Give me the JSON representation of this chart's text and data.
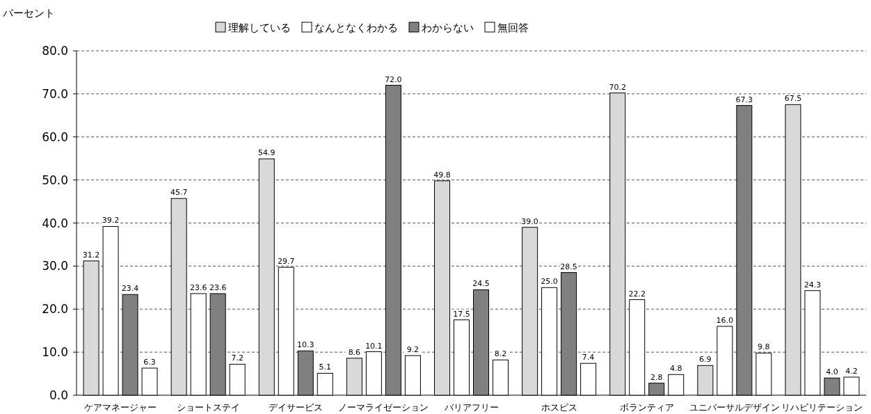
{
  "chart_data": {
    "type": "bar",
    "ylabel": "パーセント",
    "categories": [
      "ケアマネージャー",
      "ショートステイ",
      "デイサービス",
      "ノーマライゼーション",
      "バリアフリー",
      "ホスピス",
      "ボランティア",
      "ユニバーサルデザイン",
      "リハビリテーション"
    ],
    "series": [
      {
        "name": "理解している",
        "color": "#d9d9d9",
        "values": [
          31.2,
          45.7,
          54.9,
          8.6,
          49.8,
          39.0,
          70.2,
          6.9,
          67.5
        ],
        "value_labels": [
          "31.2",
          "45.7",
          "54.9",
          "8.6",
          "49.8",
          "39.0",
          "70.2",
          "6.9",
          "67.5"
        ]
      },
      {
        "name": "なんとなくわかる",
        "color": "#ffffff",
        "values": [
          39.2,
          23.6,
          29.7,
          10.1,
          17.5,
          25.0,
          22.2,
          16.0,
          24.3
        ],
        "value_labels": [
          "39.2",
          "23.6",
          "29.7",
          "10.1",
          "17.5",
          "25.0",
          "22.2",
          "16.0",
          "24.3"
        ]
      },
      {
        "name": "わからない",
        "color": "#808080",
        "values": [
          23.4,
          23.6,
          10.3,
          72.0,
          24.5,
          28.5,
          2.8,
          67.3,
          4.0
        ],
        "value_labels": [
          "23.4",
          "23.6",
          "10.3",
          "72.0",
          "24.5",
          "28.5",
          "2.8",
          "67.3",
          "4.0"
        ]
      },
      {
        "name": "無回答",
        "color": "#ffffff",
        "values": [
          6.3,
          7.2,
          5.1,
          9.2,
          8.2,
          7.4,
          4.8,
          9.8,
          4.2
        ],
        "value_labels": [
          "6.3",
          "7.2",
          "5.1",
          "9.2",
          "8.2",
          "7.4",
          "4.8",
          "9.8",
          "4.2"
        ]
      }
    ],
    "ylim": [
      0,
      80
    ],
    "yticks": [
      {
        "value": 0,
        "label": "0.0"
      },
      {
        "value": 10,
        "label": "10.0"
      },
      {
        "value": 20,
        "label": "20.0"
      },
      {
        "value": 30,
        "label": "30.0"
      },
      {
        "value": 40,
        "label": "40.0"
      },
      {
        "value": 50,
        "label": "50.0"
      },
      {
        "value": 60,
        "label": "60.0"
      },
      {
        "value": 70,
        "label": "70.0"
      },
      {
        "value": 80,
        "label": "80.0"
      }
    ],
    "grid": "y",
    "legend": "top"
  }
}
